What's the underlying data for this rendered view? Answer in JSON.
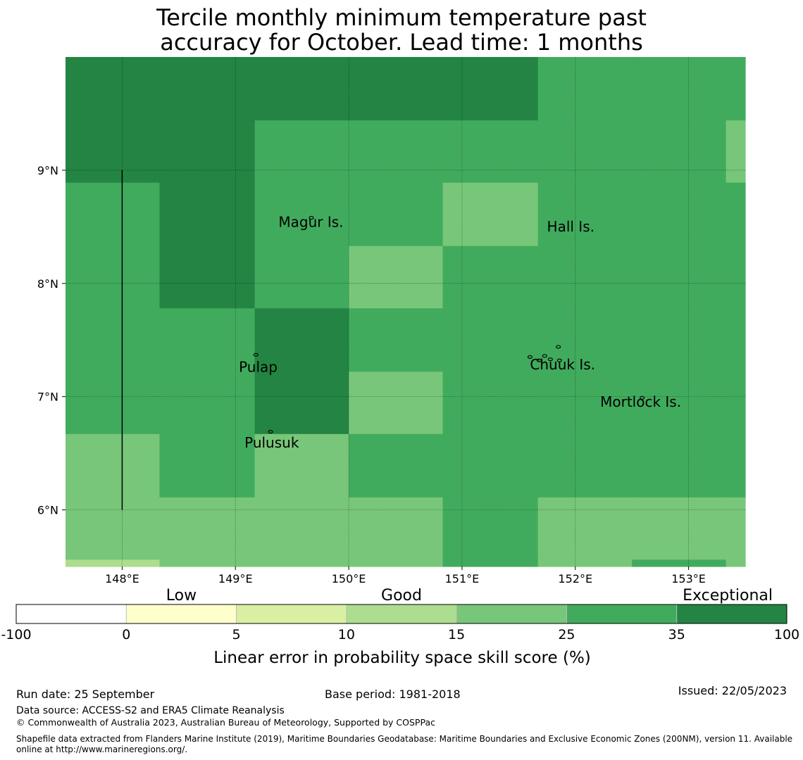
{
  "title": {
    "line1": "Tercile monthly minimum temperature past",
    "line2": "accuracy for October. Lead time: 1 months"
  },
  "map": {
    "lon_range": [
      147.5,
      153.5
    ],
    "lat_range": [
      5.5,
      10.0
    ],
    "lon_ticks": [
      {
        "value": 148,
        "label": "148°E"
      },
      {
        "value": 149,
        "label": "149°E"
      },
      {
        "value": 150,
        "label": "150°E"
      },
      {
        "value": 151,
        "label": "151°E"
      },
      {
        "value": 152,
        "label": "152°E"
      },
      {
        "value": 153,
        "label": "153°E"
      }
    ],
    "lat_ticks": [
      {
        "value": 9,
        "label": "9°N"
      },
      {
        "value": 8,
        "label": "8°N"
      },
      {
        "value": 7,
        "label": "7°N"
      },
      {
        "value": 6,
        "label": "6°N"
      }
    ],
    "grid_lon_edges": [
      147.5,
      148.33,
      149.17,
      150.0,
      150.83,
      151.67,
      152.5,
      153.33,
      153.5
    ],
    "grid_lat_edges": [
      10.0,
      9.44,
      8.89,
      8.33,
      7.78,
      7.22,
      6.67,
      6.11,
      5.56,
      5.5
    ],
    "grid_levels": [
      [
        6,
        6,
        6,
        6,
        6,
        5,
        5,
        5
      ],
      [
        6,
        6,
        5,
        5,
        5,
        5,
        5,
        4
      ],
      [
        5,
        6,
        5,
        5,
        4,
        5,
        5,
        5
      ],
      [
        5,
        6,
        5,
        4,
        5,
        5,
        5,
        5
      ],
      [
        5,
        5,
        6,
        5,
        5,
        5,
        5,
        5
      ],
      [
        5,
        5,
        6,
        4,
        5,
        5,
        5,
        5
      ],
      [
        4,
        5,
        4,
        5,
        5,
        5,
        5,
        5
      ],
      [
        4,
        4,
        4,
        4,
        5,
        4,
        4,
        4
      ],
      [
        3,
        4,
        4,
        4,
        5,
        4,
        5,
        4
      ]
    ],
    "colors": [
      "#ffffff",
      "#ffffcc",
      "#d9f0a3",
      "#addd8e",
      "#78c679",
      "#41ab5d",
      "#238443"
    ],
    "boundary_line": {
      "lon": 148.0,
      "lat_from": 6.0,
      "lat_to": 9.0
    },
    "places": [
      {
        "name": "Magur Is.",
        "lon": 149.38,
        "lat": 8.5,
        "islands": [
          [
            149.67,
            8.58
          ]
        ]
      },
      {
        "name": "Hall Is.",
        "lon": 151.75,
        "lat": 8.46,
        "islands": []
      },
      {
        "name": "Pulap",
        "lon": 149.03,
        "lat": 7.22,
        "islands": [
          [
            149.18,
            7.37
          ]
        ]
      },
      {
        "name": "Chuuk Is.",
        "lon": 151.6,
        "lat": 7.24,
        "islands": [
          [
            151.6,
            7.35
          ],
          [
            151.68,
            7.32
          ],
          [
            151.73,
            7.36
          ],
          [
            151.78,
            7.33
          ],
          [
            151.85,
            7.44
          ],
          [
            151.86,
            7.32
          ]
        ]
      },
      {
        "name": "Mortlock Is.",
        "lon": 152.22,
        "lat": 6.91,
        "islands": [
          [
            152.59,
            6.99
          ]
        ]
      },
      {
        "name": "Pulusuk",
        "lon": 149.08,
        "lat": 6.55,
        "islands": [
          [
            149.31,
            6.69
          ]
        ]
      }
    ]
  },
  "legend": {
    "categories": [
      {
        "label": "Low",
        "at": 1.5
      },
      {
        "label": "Good",
        "at": 3.5
      },
      {
        "label": "Exceptional",
        "at": 6.5
      }
    ],
    "tick_labels": [
      "-100",
      "0",
      "5",
      "10",
      "15",
      "25",
      "35",
      "100"
    ],
    "colors": [
      "#ffffff",
      "#ffffcc",
      "#d9f0a3",
      "#addd8e",
      "#78c679",
      "#41ab5d",
      "#238443"
    ],
    "xlabel": "Linear error in probability space skill score (%)"
  },
  "footer": {
    "run_date": "Run date: 25 September",
    "base_period": "Base period: 1981-2018",
    "issued": "Issued: 22/05/2023",
    "data_source": "Data source: ACCESS-S2 and ERA5 Climate Reanalysis",
    "copyright": "© Commonwealth of Australia 2023, Australian Bureau of Meteorology, Supported by COSPPac",
    "shapefile": "Shapefile data extracted from Flanders Marine Institute (2019), Maritime Boundaries Geodatabase: Maritime Boundaries and Exclusive Economic Zones (200NM), version 11. Available online at http://www.marineregions.org/."
  }
}
